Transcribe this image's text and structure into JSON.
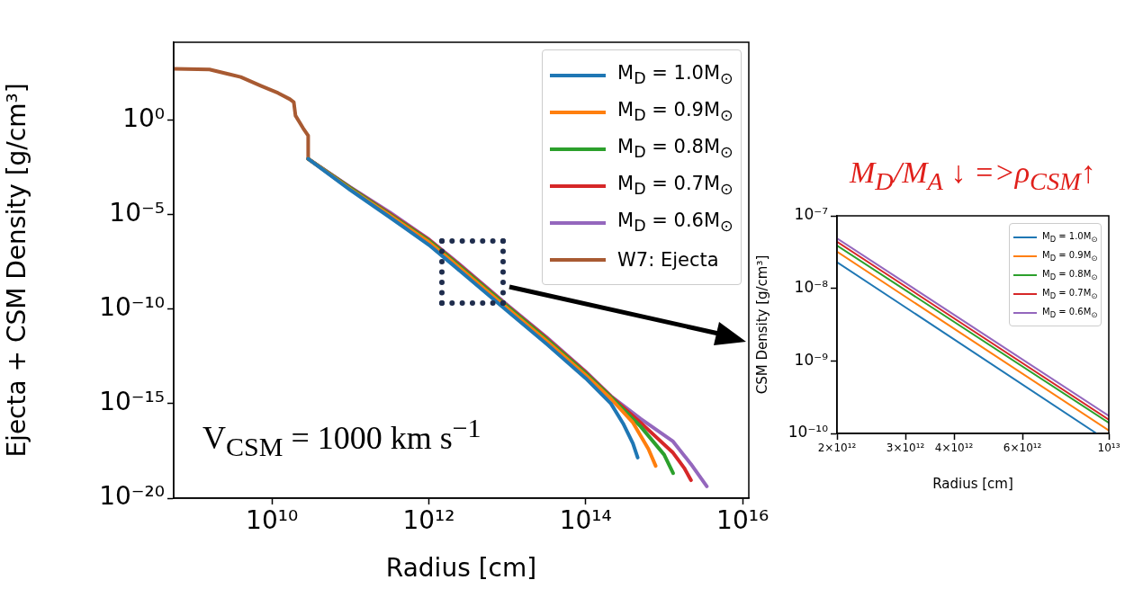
{
  "chart_data": [
    {
      "type": "line",
      "xlabel": "Radius [cm]",
      "ylabel": "Ejecta + CSM Density [g/cm³]",
      "log": "xy",
      "legend": "top right",
      "grid": false,
      "xlim": [
        560000000.0,
        1.2e+16
      ],
      "ylim": [
        1e-20,
        13000.0
      ],
      "xticks": [
        {
          "value": 10000000000.0,
          "label": "10¹⁰"
        },
        {
          "value": 1000000000000.0,
          "label": "10¹²"
        },
        {
          "value": 100000000000000.0,
          "label": "10¹⁴"
        },
        {
          "value": 1e+16,
          "label": "10¹⁶"
        }
      ],
      "yticks": [
        {
          "value": 1,
          "label": "10⁰"
        },
        {
          "value": 1e-05,
          "label": "10⁻⁵"
        },
        {
          "value": 1e-10,
          "label": "10⁻¹⁰"
        },
        {
          "value": 1e-15,
          "label": "10⁻¹⁵"
        },
        {
          "value": 1e-20,
          "label": "10⁻²⁰"
        }
      ],
      "annotations": [
        "V$_{CSM}$ = 1000 km s$^{−1}$"
      ],
      "series": [
        {
          "name": "M$_{D}$ = 1.0M$_{⊙}$",
          "color": "#1f77b4",
          "x": [
            29000000000.0,
            100000000000.0,
            320000000000.0,
            1000000000000.0,
            2000000000000.0,
            10000000000000.0,
            32000000000000.0,
            100000000000000.0,
            210000000000000.0,
            300000000000000.0,
            400000000000000.0,
            460000000000000.0
          ],
          "values": [
            0.0089,
            0.0002,
            7.1e-06,
            2.5e-07,
            2.3e-08,
            8.1e-11,
            1.4e-12,
            2.2e-14,
            1e-15,
            8.9e-17,
            7.9e-18,
            1.4e-18
          ]
        },
        {
          "name": "M$_{D}$ = 0.9M$_{⊙}$",
          "color": "#ff7f0e",
          "x": [
            29000000000.0,
            100000000000.0,
            320000000000.0,
            1000000000000.0,
            2000000000000.0,
            10000000000000.0,
            32000000000000.0,
            100000000000000.0,
            210000000000000.0,
            400000000000000.0,
            630000000000000.0,
            780000000000000.0
          ],
          "values": [
            0.0089,
            0.00022,
            8.9e-06,
            3.5e-07,
            3.2e-08,
            1.1e-10,
            2e-12,
            3.2e-14,
            1.8e-15,
            1e-16,
            4e-18,
            5.1e-19
          ]
        },
        {
          "name": "M$_{D}$ = 0.8M$_{⊙}$",
          "color": "#2ca02c",
          "x": [
            29000000000.0,
            100000000000.0,
            320000000000.0,
            1000000000000.0,
            2000000000000.0,
            10000000000000.0,
            32000000000000.0,
            100000000000000.0,
            210000000000000.0,
            500000000000000.0,
            1000000000000000.0,
            1300000000000000.0
          ],
          "values": [
            0.0089,
            0.00025,
            1e-05,
            4.2e-07,
            3.9e-08,
            1.4e-10,
            2.5e-12,
            4e-14,
            2.2e-15,
            6.3e-17,
            2e-18,
            2.1e-19
          ]
        },
        {
          "name": "M$_{D}$ = 0.7M$_{⊙}$",
          "color": "#d62728",
          "x": [
            29000000000.0,
            100000000000.0,
            320000000000.0,
            1000000000000.0,
            2000000000000.0,
            10000000000000.0,
            32000000000000.0,
            100000000000000.0,
            210000000000000.0,
            500000000000000.0,
            1300000000000000.0,
            1800000000000000.0,
            2200000000000000.0
          ],
          "values": [
            0.0089,
            0.00027,
            1.1e-05,
            4.7e-07,
            4.4e-08,
            1.5e-10,
            2.8e-12,
            4.5e-14,
            2.4e-15,
            1e-16,
            2.5e-18,
            4e-19,
            8.9e-20
          ]
        },
        {
          "name": "M$_{D}$ = 0.6M$_{⊙}$",
          "color": "#9467bd",
          "x": [
            29000000000.0,
            100000000000.0,
            320000000000.0,
            1000000000000.0,
            2000000000000.0,
            10000000000000.0,
            32000000000000.0,
            100000000000000.0,
            210000000000000.0,
            500000000000000.0,
            1300000000000000.0,
            2200000000000000.0,
            3500000000000000.0
          ],
          "values": [
            0.0089,
            0.00028,
            1.3e-05,
            5e-07,
            4.9e-08,
            1.7e-10,
            3.2e-12,
            5e-14,
            2.5e-15,
            1.6e-16,
            1e-17,
            6.3e-19,
            4.2e-20
          ]
        },
        {
          "name": "W7: Ejecta",
          "color": "#a85a32",
          "x": [
            560000000.0,
            1600000000.0,
            4000000000.0,
            7200000000.0,
            12000000000.0,
            17000000000.0,
            19000000000.0,
            20000000000.0,
            25000000000.0,
            29000000000.0,
            29000000000.0
          ],
          "values": [
            510,
            470,
            190,
            65,
            27,
            12.6,
            8.9,
            1.7,
            0.37,
            0.15,
            0.0089
          ]
        }
      ]
    },
    {
      "type": "line",
      "title": "M$_{D}$/M$_{A}$ ↓ =>ρ$_{CSM}$↑",
      "xlabel": "Radius [cm]",
      "ylabel": "CSM Density [g/cm³]",
      "log": "xy",
      "legend": "top right",
      "grid": false,
      "xlim": [
        2000000000000.0,
        10000000000000.0
      ],
      "ylim": [
        1e-10,
        1e-07
      ],
      "xticks": [
        {
          "value": 2000000000000.0,
          "label": "2×10¹²"
        },
        {
          "value": 3000000000000.0,
          "label": "3×10¹²"
        },
        {
          "value": 4000000000000.0,
          "label": "4×10¹²"
        },
        {
          "value": 6000000000000.0,
          "label": "6×10¹²"
        },
        {
          "value": 10000000000000.0,
          "label": "10¹³"
        }
      ],
      "yticks": [
        {
          "value": 1e-10,
          "label": "10⁻¹⁰"
        },
        {
          "value": 1e-09,
          "label": "10⁻⁹"
        },
        {
          "value": 1e-08,
          "label": "10⁻⁸"
        },
        {
          "value": 1e-07,
          "label": "10⁻⁷"
        }
      ],
      "series": [
        {
          "name": "M$_{D}$ = 1.0M$_{⊙}$",
          "color": "#1f77b4",
          "x": [
            2000000000000.0,
            9300000000000.0
          ],
          "values": [
            2.3e-08,
            1e-10
          ]
        },
        {
          "name": "M$_{D}$ = 0.9M$_{⊙}$",
          "color": "#ff7f0e",
          "x": [
            2000000000000.0,
            10000000000000.0
          ],
          "values": [
            3.2e-08,
            1.1e-10
          ]
        },
        {
          "name": "M$_{D}$ = 0.8M$_{⊙}$",
          "color": "#2ca02c",
          "x": [
            2000000000000.0,
            10000000000000.0
          ],
          "values": [
            3.9e-08,
            1.4e-10
          ]
        },
        {
          "name": "M$_{D}$ = 0.7M$_{⊙}$",
          "color": "#d62728",
          "x": [
            2000000000000.0,
            10000000000000.0
          ],
          "values": [
            4.4e-08,
            1.55e-10
          ]
        },
        {
          "name": "M$_{D}$ = 0.6M$_{⊙}$",
          "color": "#9467bd",
          "x": [
            2000000000000.0,
            10000000000000.0
          ],
          "values": [
            4.9e-08,
            1.75e-10
          ]
        }
      ]
    }
  ]
}
